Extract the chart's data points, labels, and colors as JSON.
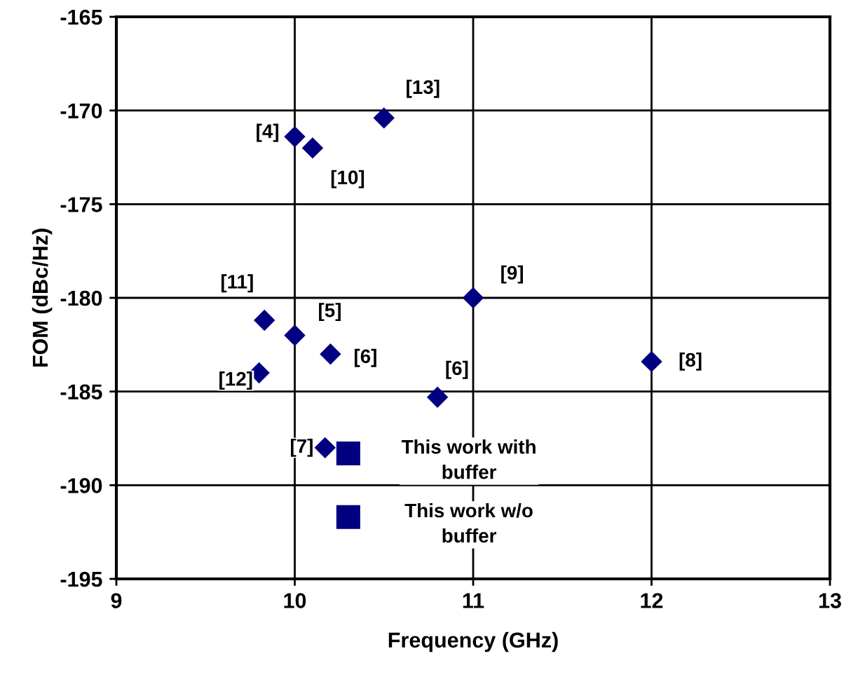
{
  "chart_data": {
    "type": "scatter",
    "xlabel": "Frequency (GHz)",
    "ylabel": "FOM (dBc/Hz)",
    "xlim": [
      9,
      13
    ],
    "xticks": [
      9,
      10,
      11,
      12,
      13
    ],
    "ylim": [
      -195,
      -165
    ],
    "yticks": [
      -195,
      -190,
      -185,
      -180,
      -175,
      -170,
      -165
    ],
    "grid": true,
    "legend": false,
    "series": [
      {
        "color": "#000080",
        "marker": "diamond",
        "x": [
          10.5,
          10.0,
          10.1,
          11.0,
          9.83,
          10.0,
          10.2,
          9.8,
          12.0,
          10.8,
          10.17
        ],
        "values": [
          -170.4,
          -171.4,
          -172.0,
          -180.0,
          -181.2,
          -182.0,
          -183.0,
          -184.0,
          -183.4,
          -185.3,
          -188.0
        ]
      },
      {
        "name": "This work with buffer",
        "color": "#000080",
        "marker": "square",
        "x": [
          10.3
        ],
        "values": [
          -188.3
        ]
      },
      {
        "name": "This work w/o buffer",
        "color": "#000080",
        "marker": "square",
        "x": [
          10.3
        ],
        "values": [
          -191.7
        ]
      }
    ],
    "annotations": [
      {
        "text": "[13]",
        "x": 10.5,
        "y": -170.4
      },
      {
        "text": "[4]",
        "x": 10.0,
        "y": -171.4
      },
      {
        "text": "[10]",
        "x": 10.1,
        "y": -172.0
      },
      {
        "text": "[9]",
        "x": 11.0,
        "y": -180.0
      },
      {
        "text": "[11]",
        "x": 9.83,
        "y": -181.2
      },
      {
        "text": "[5]",
        "x": 10.0,
        "y": -182.0
      },
      {
        "text": "[6]",
        "x": 10.2,
        "y": -183.0
      },
      {
        "text": "[12]",
        "x": 9.8,
        "y": -184.0
      },
      {
        "text": "[8]",
        "x": 12.0,
        "y": -183.4
      },
      {
        "text": "[6]",
        "x": 10.8,
        "y": -185.3
      },
      {
        "text": "[7]",
        "x": 10.17,
        "y": -188.0
      }
    ]
  }
}
